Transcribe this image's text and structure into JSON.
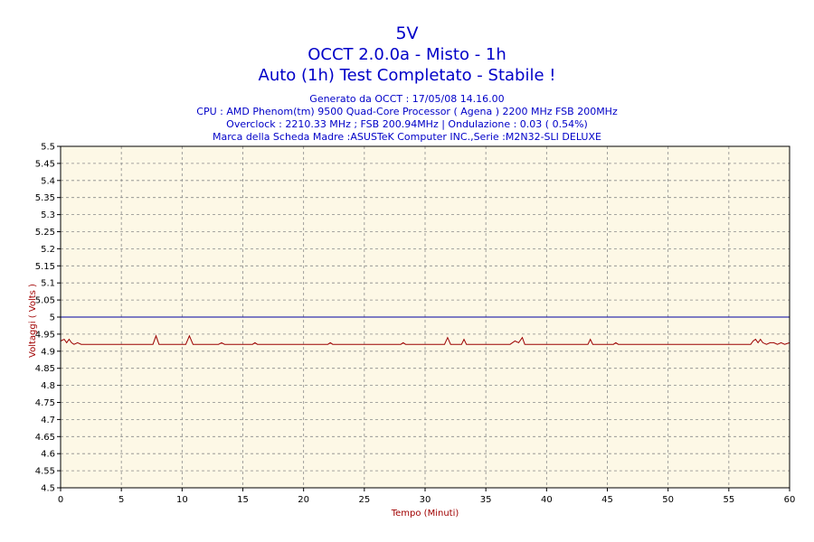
{
  "header": {
    "title": "5V",
    "subtitle": "OCCT 2.0.0a - Misto - 1h",
    "status": "Auto (1h) Test Completato - Stabile !",
    "info_lines": [
      "Generato da OCCT : 17/05/08 14.16.00",
      "CPU : AMD Phenom(tm) 9500 Quad-Core Processor ( Agena ) 2200 MHz FSB 200MHz",
      "Overclock : 2210.33 MHz ; FSB 200.94MHz | Ondulazione : 0.03 ( 0.54%)",
      "Marca della Scheda Madre :ASUSTeK Computer INC.,Serie :M2N32-SLI DELUXE"
    ]
  },
  "colors": {
    "plot_bg": "#fdf8e6",
    "grid": "#8a8a8a",
    "series_line": "#9b0000",
    "reference_line": "#0000a0",
    "title_text": "#0000c8",
    "axis_label": "#a00000"
  },
  "chart_data": {
    "type": "line",
    "title": "5V",
    "xlabel": "Tempo (Minuti)",
    "ylabel": "Voltaggi ( Volts )",
    "xlim": [
      0,
      60
    ],
    "ylim": [
      4.5,
      5.5
    ],
    "x_ticks": [
      "0",
      "5",
      "10",
      "15",
      "20",
      "25",
      "30",
      "35",
      "40",
      "45",
      "50",
      "55",
      "60"
    ],
    "y_ticks": [
      "5.5",
      "5.45",
      "5.4",
      "5.35",
      "5.3",
      "5.25",
      "5.2",
      "5.15",
      "5.1",
      "5.05",
      "5",
      "4.95",
      "4.9",
      "4.85",
      "4.8",
      "4.75",
      "4.7",
      "4.65",
      "4.6",
      "4.55",
      "4.5"
    ],
    "grid": true,
    "reference_line": {
      "y": 5.0
    },
    "series": [
      {
        "x": [
          0,
          0.3,
          0.5,
          0.7,
          0.9,
          1.1,
          1.4,
          1.7,
          2,
          5,
          7.6,
          7.85,
          8.1,
          8.4,
          10.3,
          10.6,
          10.9,
          13,
          13.25,
          13.5,
          15.8,
          16,
          16.2,
          22,
          22.2,
          22.4,
          28,
          28.2,
          28.4,
          31.6,
          31.85,
          32.1,
          33,
          33.2,
          33.4,
          37,
          37.4,
          37.7,
          38,
          38.2,
          38.5,
          43.4,
          43.6,
          43.8,
          45.5,
          45.7,
          45.9,
          56.8,
          57,
          57.2,
          57.4,
          57.6,
          57.8,
          58.1,
          58.4,
          58.7,
          59,
          59.3,
          59.6,
          60
        ],
        "y": [
          4.93,
          4.935,
          4.925,
          4.935,
          4.925,
          4.92,
          4.925,
          4.92,
          4.92,
          4.92,
          4.92,
          4.945,
          4.92,
          4.92,
          4.92,
          4.945,
          4.92,
          4.92,
          4.925,
          4.92,
          4.92,
          4.925,
          4.92,
          4.92,
          4.925,
          4.92,
          4.92,
          4.925,
          4.92,
          4.92,
          4.94,
          4.92,
          4.92,
          4.935,
          4.92,
          4.92,
          4.93,
          4.925,
          4.94,
          4.92,
          4.92,
          4.92,
          4.935,
          4.92,
          4.92,
          4.925,
          4.92,
          4.92,
          4.93,
          4.935,
          4.925,
          4.935,
          4.925,
          4.92,
          4.925,
          4.925,
          4.92,
          4.925,
          4.92,
          4.925
        ]
      }
    ]
  }
}
